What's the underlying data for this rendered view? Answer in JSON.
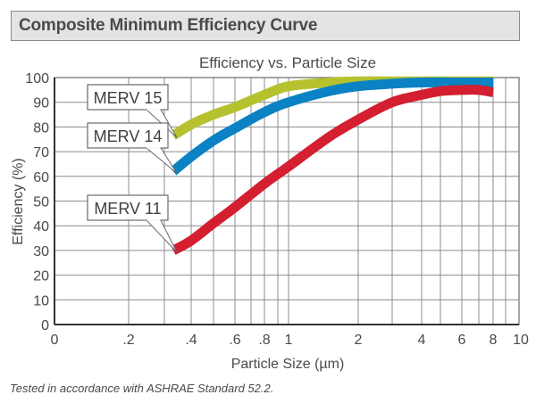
{
  "header": {
    "title": "Composite Minimum Efficiency Curve"
  },
  "footnote": "Tested in accordance with ASHRAE Standard 52.2.",
  "chart_data": {
    "type": "line",
    "title": "Efficiency vs. Particle Size",
    "xlabel": "Particle Size (µm)",
    "ylabel": "Efficiency (%)",
    "xscale": "log",
    "xlim": [
      0,
      10
    ],
    "ylim": [
      0,
      100
    ],
    "grid": true,
    "x_ticks": [
      "0",
      ".2",
      ".4",
      ".6",
      ".8",
      "1",
      "2",
      "4",
      "6",
      "8",
      "10"
    ],
    "x_gridlines": [
      0.2,
      0.3,
      0.4,
      0.5,
      0.6,
      0.7,
      0.8,
      0.9,
      1,
      2,
      3,
      4,
      5,
      6,
      7,
      8,
      9
    ],
    "y_ticks": [
      0,
      10,
      20,
      30,
      40,
      50,
      60,
      70,
      80,
      90,
      100
    ],
    "legend": "callout-labels-left",
    "series": [
      {
        "name": "MERV 15",
        "color": "#b5c22e",
        "x": [
          0.33,
          0.4,
          0.5,
          0.6,
          0.8,
          1,
          1.5,
          2,
          3,
          4,
          6,
          8
        ],
        "y": [
          76.5,
          81,
          85,
          88,
          93,
          96.5,
          98,
          98.5,
          98.5,
          98.5,
          98.5,
          98.5
        ]
      },
      {
        "name": "MERV 14",
        "color": "#0a82c4",
        "x": [
          0.33,
          0.4,
          0.5,
          0.6,
          0.8,
          1,
          1.5,
          2,
          3,
          4,
          6,
          8
        ],
        "y": [
          62,
          68,
          74.5,
          79.5,
          86,
          90,
          94.5,
          96.5,
          97.5,
          98,
          98,
          98
        ]
      },
      {
        "name": "MERV 11",
        "color": "#d31f30",
        "x": [
          0.33,
          0.4,
          0.5,
          0.6,
          0.8,
          1,
          1.5,
          2,
          3,
          4,
          5,
          6,
          7,
          8
        ],
        "y": [
          30,
          34,
          41,
          47.5,
          57,
          64,
          76,
          83,
          90,
          93,
          94.5,
          95,
          95,
          94
        ]
      }
    ]
  }
}
